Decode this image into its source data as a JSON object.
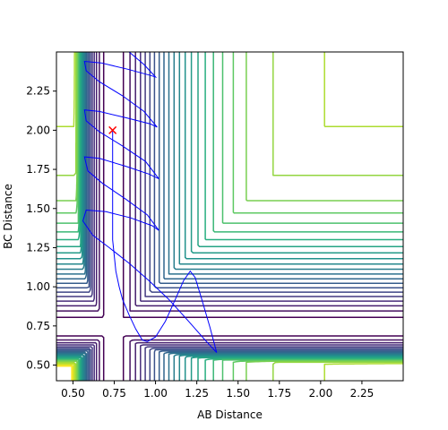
{
  "chart_data": {
    "type": "contour",
    "title": "",
    "xlabel": "AB Distance",
    "ylabel": "BC Distance",
    "xlim": [
      0.4,
      2.5
    ],
    "ylim": [
      0.4,
      2.5
    ],
    "xticks": [
      0.5,
      0.75,
      1.0,
      1.25,
      1.5,
      1.75,
      2.0,
      2.25
    ],
    "xtick_labels": [
      "0.50",
      "0.75",
      "1.00",
      "1.25",
      "1.50",
      "1.75",
      "2.00",
      "2.25"
    ],
    "yticks": [
      0.5,
      0.75,
      1.0,
      1.25,
      1.5,
      1.75,
      2.0,
      2.25
    ],
    "ytick_labels": [
      "0.50",
      "0.75",
      "1.00",
      "1.25",
      "1.50",
      "1.75",
      "2.00",
      "2.25"
    ],
    "grid": false,
    "legend": false,
    "contour_colormap": "viridis",
    "colormap_stops": [
      "#440154",
      "#472d7b",
      "#3b528b",
      "#2c728e",
      "#21918c",
      "#28ae80",
      "#5ec962",
      "#addc30",
      "#fde725"
    ],
    "contour_levels": [
      -4.6,
      -4.4,
      -4.2,
      -4.0,
      -3.8,
      -3.6,
      -3.4,
      -3.2,
      -3.0,
      -2.8,
      -2.6,
      -2.4,
      -2.2,
      -2.0,
      -1.8,
      -1.6,
      -1.4,
      -1.2,
      -1.0,
      -0.8,
      -0.5,
      -0.2,
      0.2,
      0.6,
      1.0
    ],
    "surface_model": {
      "kind": "two_morse_channels",
      "well_depth": 4.75,
      "well_exponent": 3.0,
      "equilibrium_distance": 0.74,
      "barrier": 0.4,
      "barrier_exponent": 3.0
    },
    "trajectory": {
      "color": "#0000ff",
      "start": [
        0.74,
        2.0
      ],
      "marker": "x",
      "marker_color": "#ff0000",
      "points": [
        [
          0.74,
          2.0
        ],
        [
          0.74,
          1.9
        ],
        [
          0.74,
          1.8
        ],
        [
          0.74,
          1.7
        ],
        [
          0.74,
          1.6
        ],
        [
          0.74,
          1.5
        ],
        [
          0.74,
          1.4
        ],
        [
          0.74,
          1.3
        ],
        [
          0.75,
          1.2
        ],
        [
          0.76,
          1.1
        ],
        [
          0.78,
          1.0
        ],
        [
          0.8,
          0.92
        ],
        [
          0.84,
          0.82
        ],
        [
          0.88,
          0.73
        ],
        [
          0.92,
          0.66
        ],
        [
          0.95,
          0.65
        ],
        [
          1.0,
          0.68
        ],
        [
          1.06,
          0.78
        ],
        [
          1.12,
          0.92
        ],
        [
          1.17,
          1.04
        ],
        [
          1.21,
          1.1
        ],
        [
          1.24,
          1.06
        ],
        [
          1.28,
          0.92
        ],
        [
          1.33,
          0.74
        ],
        [
          1.37,
          0.58
        ],
        [
          1.3,
          0.66
        ],
        [
          1.2,
          0.78
        ],
        [
          1.08,
          0.92
        ],
        [
          0.96,
          1.04
        ],
        [
          0.84,
          1.15
        ],
        [
          0.72,
          1.25
        ],
        [
          0.62,
          1.33
        ],
        [
          0.56,
          1.42
        ],
        [
          0.58,
          1.49
        ],
        [
          0.7,
          1.48
        ],
        [
          0.85,
          1.44
        ],
        [
          0.98,
          1.39
        ],
        [
          1.02,
          1.36
        ],
        [
          0.95,
          1.46
        ],
        [
          0.82,
          1.56
        ],
        [
          0.68,
          1.66
        ],
        [
          0.59,
          1.74
        ],
        [
          0.57,
          1.83
        ],
        [
          0.66,
          1.82
        ],
        [
          0.82,
          1.77
        ],
        [
          0.96,
          1.72
        ],
        [
          1.02,
          1.69
        ],
        [
          0.94,
          1.8
        ],
        [
          0.8,
          1.9
        ],
        [
          0.66,
          1.99
        ],
        [
          0.58,
          2.06
        ],
        [
          0.57,
          2.13
        ],
        [
          0.66,
          2.12
        ],
        [
          0.82,
          2.08
        ],
        [
          0.97,
          2.04
        ],
        [
          1.01,
          2.02
        ],
        [
          0.93,
          2.12
        ],
        [
          0.8,
          2.22
        ],
        [
          0.66,
          2.31
        ],
        [
          0.58,
          2.38
        ],
        [
          0.57,
          2.44
        ],
        [
          0.67,
          2.43
        ],
        [
          0.83,
          2.39
        ],
        [
          0.97,
          2.35
        ],
        [
          1.0,
          2.34
        ],
        [
          0.93,
          2.42
        ],
        [
          0.84,
          2.5
        ]
      ]
    }
  }
}
